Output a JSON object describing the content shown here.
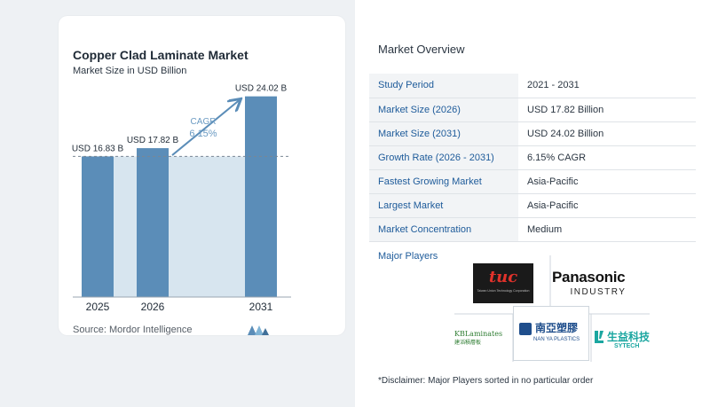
{
  "chart_data": {
    "type": "bar",
    "title": "Copper Clad Laminate Market",
    "subtitle": "Market Size in USD Billion",
    "categories": [
      "2025",
      "2026",
      "2031"
    ],
    "values": [
      16.83,
      17.82,
      24.02
    ],
    "value_labels": [
      "USD 16.83 B",
      "USD 17.82 B",
      "USD 24.02 B"
    ],
    "cagr_label": "CAGR",
    "cagr_value": "6.15%",
    "ylim": [
      0,
      26
    ],
    "colors": {
      "bar": "#5b8db8",
      "band": "#d7e5ef",
      "arrow": "#5b8db8",
      "cagr": "#6a9ac2"
    }
  },
  "source": "Source: Mordor Intelligence",
  "overview": {
    "title": "Market Overview",
    "rows": [
      {
        "key": "Study Period",
        "value": "2021 - 2031"
      },
      {
        "key": "Market Size (2026)",
        "value": "USD 17.82 Billion"
      },
      {
        "key": "Market Size (2031)",
        "value": "USD 24.02 Billion"
      },
      {
        "key": "Growth Rate (2026 - 2031)",
        "value": "6.15% CAGR"
      },
      {
        "key": "Fastest Growing Market",
        "value": "Asia-Pacific"
      },
      {
        "key": "Largest Market",
        "value": "Asia-Pacific"
      },
      {
        "key": "Market Concentration",
        "value": "Medium"
      }
    ]
  },
  "major_players": {
    "label": "Major Players",
    "logos": {
      "tuc": {
        "text": "tuc",
        "subtext": "Taiwan Union Technology Corporation"
      },
      "panasonic": {
        "text": "Panasonic",
        "subtext": "INDUSTRY"
      },
      "kb": {
        "text": "KBLaminates",
        "subtext": "建滔積層板"
      },
      "nanya": {
        "text": "南亞塑膠",
        "subtext": "NAN YA PLASTICS"
      },
      "sytech": {
        "text": "生益科技",
        "subtext": "SYTECH"
      }
    }
  },
  "disclaimer": "*Disclaimer: Major Players sorted in no particular order"
}
